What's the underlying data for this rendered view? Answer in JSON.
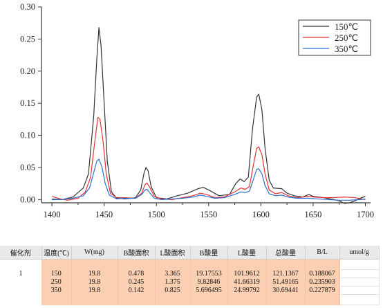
{
  "chart_data": {
    "type": "line",
    "xlim": [
      1390,
      1705
    ],
    "ylim": [
      -0.005,
      0.3
    ],
    "x_ticks": [
      1400,
      1450,
      1500,
      1550,
      1600,
      1650,
      1700
    ],
    "y_ticks": [
      0.0,
      0.05,
      0.1,
      0.15,
      0.2,
      0.25,
      0.3
    ],
    "x_tick_labels": [
      "1400",
      "1450",
      "1500",
      "1550",
      "1600",
      "1650",
      "1700"
    ],
    "y_tick_labels": [
      "0.00",
      "0.05",
      "0.10",
      "0.15",
      "0.20",
      "0.25",
      "0.30"
    ],
    "legend_position": "top-right",
    "grid": false,
    "series": [
      {
        "name": "150℃",
        "color": "#333333",
        "points": [
          [
            1400,
            0.001
          ],
          [
            1410,
            0.0
          ],
          [
            1420,
            0.004
          ],
          [
            1430,
            0.018
          ],
          [
            1435,
            0.04
          ],
          [
            1440,
            0.13
          ],
          [
            1443,
            0.22
          ],
          [
            1445,
            0.268
          ],
          [
            1447,
            0.24
          ],
          [
            1450,
            0.15
          ],
          [
            1453,
            0.06
          ],
          [
            1457,
            0.012
          ],
          [
            1462,
            0.002
          ],
          [
            1470,
            0.001
          ],
          [
            1480,
            0.003
          ],
          [
            1485,
            0.015
          ],
          [
            1488,
            0.04
          ],
          [
            1490,
            0.05
          ],
          [
            1492,
            0.045
          ],
          [
            1495,
            0.02
          ],
          [
            1500,
            0.003
          ],
          [
            1510,
            0.001
          ],
          [
            1520,
            0.006
          ],
          [
            1530,
            0.01
          ],
          [
            1540,
            0.017
          ],
          [
            1545,
            0.019
          ],
          [
            1550,
            0.015
          ],
          [
            1560,
            0.006
          ],
          [
            1570,
            0.008
          ],
          [
            1576,
            0.025
          ],
          [
            1580,
            0.032
          ],
          [
            1584,
            0.028
          ],
          [
            1588,
            0.035
          ],
          [
            1592,
            0.11
          ],
          [
            1596,
            0.16
          ],
          [
            1598,
            0.164
          ],
          [
            1601,
            0.14
          ],
          [
            1604,
            0.08
          ],
          [
            1608,
            0.03
          ],
          [
            1612,
            0.018
          ],
          [
            1620,
            0.017
          ],
          [
            1625,
            0.01
          ],
          [
            1632,
            0.006
          ],
          [
            1640,
            0.004
          ],
          [
            1646,
            0.008
          ],
          [
            1650,
            0.005
          ],
          [
            1660,
            0.003
          ],
          [
            1670,
            0.0
          ],
          [
            1675,
            -0.002
          ],
          [
            1680,
            -0.006
          ],
          [
            1685,
            -0.005
          ],
          [
            1690,
            -0.002
          ],
          [
            1695,
            0.002
          ],
          [
            1700,
            0.005
          ]
        ]
      },
      {
        "name": "250℃",
        "color": "#e53030",
        "points": [
          [
            1400,
            0.005
          ],
          [
            1408,
            0.001
          ],
          [
            1415,
            -0.001
          ],
          [
            1425,
            0.002
          ],
          [
            1432,
            0.012
          ],
          [
            1437,
            0.035
          ],
          [
            1441,
            0.09
          ],
          [
            1444,
            0.128
          ],
          [
            1446,
            0.125
          ],
          [
            1449,
            0.09
          ],
          [
            1452,
            0.04
          ],
          [
            1456,
            0.01
          ],
          [
            1462,
            0.003
          ],
          [
            1470,
            0.003
          ],
          [
            1480,
            0.002
          ],
          [
            1486,
            0.01
          ],
          [
            1489,
            0.023
          ],
          [
            1491,
            0.026
          ],
          [
            1494,
            0.018
          ],
          [
            1498,
            0.005
          ],
          [
            1505,
            0.001
          ],
          [
            1515,
            0.0
          ],
          [
            1525,
            0.003
          ],
          [
            1535,
            0.006
          ],
          [
            1542,
            0.01
          ],
          [
            1548,
            0.008
          ],
          [
            1556,
            0.003
          ],
          [
            1565,
            0.004
          ],
          [
            1575,
            0.012
          ],
          [
            1581,
            0.018
          ],
          [
            1585,
            0.016
          ],
          [
            1589,
            0.02
          ],
          [
            1593,
            0.055
          ],
          [
            1596,
            0.08
          ],
          [
            1598,
            0.082
          ],
          [
            1601,
            0.07
          ],
          [
            1604,
            0.04
          ],
          [
            1608,
            0.015
          ],
          [
            1614,
            0.009
          ],
          [
            1620,
            0.011
          ],
          [
            1626,
            0.006
          ],
          [
            1635,
            0.003
          ],
          [
            1645,
            0.005
          ],
          [
            1650,
            0.004
          ],
          [
            1660,
            0.003
          ],
          [
            1670,
            0.003
          ],
          [
            1680,
            0.004
          ],
          [
            1690,
            0.003
          ],
          [
            1700,
            0.0
          ]
        ]
      },
      {
        "name": "350℃",
        "color": "#2b6ed4",
        "points": [
          [
            1400,
            0.0
          ],
          [
            1410,
            0.0
          ],
          [
            1420,
            0.002
          ],
          [
            1430,
            0.006
          ],
          [
            1436,
            0.018
          ],
          [
            1440,
            0.042
          ],
          [
            1443,
            0.06
          ],
          [
            1445,
            0.063
          ],
          [
            1448,
            0.05
          ],
          [
            1451,
            0.025
          ],
          [
            1455,
            0.007
          ],
          [
            1462,
            0.001
          ],
          [
            1470,
            0.002
          ],
          [
            1480,
            0.002
          ],
          [
            1486,
            0.008
          ],
          [
            1489,
            0.015
          ],
          [
            1491,
            0.016
          ],
          [
            1494,
            0.01
          ],
          [
            1498,
            0.002
          ],
          [
            1505,
            0.0
          ],
          [
            1515,
            0.001
          ],
          [
            1525,
            0.002
          ],
          [
            1535,
            0.004
          ],
          [
            1542,
            0.007
          ],
          [
            1548,
            0.005
          ],
          [
            1556,
            0.002
          ],
          [
            1565,
            0.003
          ],
          [
            1575,
            0.008
          ],
          [
            1581,
            0.012
          ],
          [
            1585,
            0.011
          ],
          [
            1589,
            0.013
          ],
          [
            1593,
            0.032
          ],
          [
            1596,
            0.047
          ],
          [
            1598,
            0.048
          ],
          [
            1601,
            0.04
          ],
          [
            1604,
            0.022
          ],
          [
            1608,
            0.009
          ],
          [
            1614,
            0.006
          ],
          [
            1620,
            0.007
          ],
          [
            1626,
            0.004
          ],
          [
            1635,
            0.002
          ],
          [
            1645,
            0.002
          ],
          [
            1655,
            0.001
          ],
          [
            1665,
            0.0
          ],
          [
            1675,
            -0.001
          ],
          [
            1685,
            -0.001
          ],
          [
            1695,
            0.0
          ],
          [
            1700,
            0.001
          ]
        ]
      }
    ]
  },
  "table": {
    "headers": [
      "催化剂",
      "温度(℃)",
      "W(mg)",
      "B酸面积",
      "L酸面积",
      "B酸量",
      "L酸量",
      "总酸量",
      "B/L",
      "umol/g"
    ],
    "catalyst": "1",
    "rows": [
      [
        "150",
        "19.8",
        "0.478",
        "3.365",
        "19.17553",
        "101.9612",
        "121.1367",
        "0.188067"
      ],
      [
        "250",
        "19.8",
        "0.245",
        "1.375",
        "9.82846",
        "41.66319",
        "51.49165",
        "0.235903"
      ],
      [
        "350",
        "19.8",
        "0.142",
        "0.825",
        "5.696495",
        "24.99792",
        "30.69441",
        "0.227879"
      ]
    ]
  }
}
